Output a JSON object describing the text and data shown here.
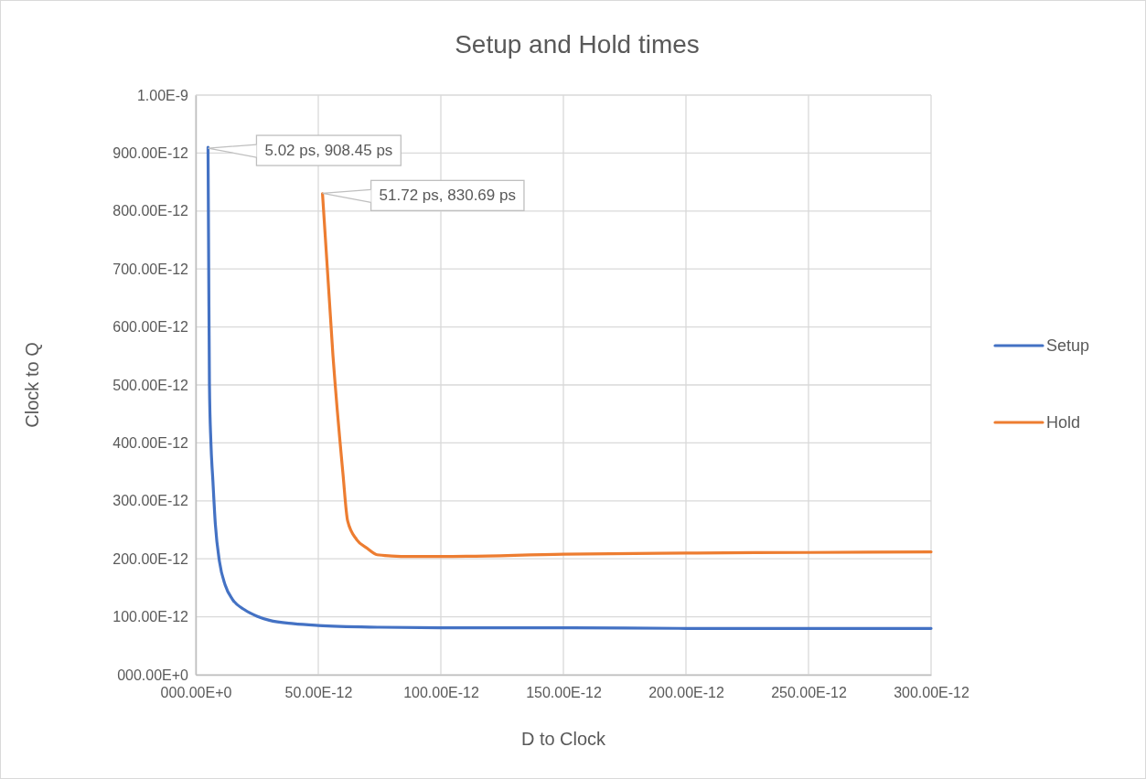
{
  "chart_data": {
    "type": "line",
    "title": "Setup and Hold times",
    "xlabel": "D to Clock",
    "ylabel": "Clock to Q",
    "xlim": [
      0,
      3e-10
    ],
    "ylim": [
      0,
      1e-09
    ],
    "xticks": [
      {
        "value": 0,
        "label": "000.00E+0"
      },
      {
        "value": 5e-11,
        "label": "50.00E-12"
      },
      {
        "value": 1e-10,
        "label": "100.00E-12"
      },
      {
        "value": 1.5e-10,
        "label": "150.00E-12"
      },
      {
        "value": 2e-10,
        "label": "200.00E-12"
      },
      {
        "value": 2.5e-10,
        "label": "250.00E-12"
      },
      {
        "value": 3e-10,
        "label": "300.00E-12"
      }
    ],
    "yticks": [
      {
        "value": 0,
        "label": "000.00E+0"
      },
      {
        "value": 1e-10,
        "label": "100.00E-12"
      },
      {
        "value": 2e-10,
        "label": "200.00E-12"
      },
      {
        "value": 3e-10,
        "label": "300.00E-12"
      },
      {
        "value": 4e-10,
        "label": "400.00E-12"
      },
      {
        "value": 5e-10,
        "label": "500.00E-12"
      },
      {
        "value": 6e-10,
        "label": "600.00E-12"
      },
      {
        "value": 7e-10,
        "label": "700.00E-12"
      },
      {
        "value": 8e-10,
        "label": "800.00E-12"
      },
      {
        "value": 9e-10,
        "label": "900.00E-12"
      },
      {
        "value": 1e-09,
        "label": "1.00E-9"
      }
    ],
    "grid": true,
    "legend": "right",
    "marker": "none",
    "line_style": "solid",
    "series": [
      {
        "name": "Setup",
        "color": "#4472c4",
        "x": [
          5.02e-12,
          5.3e-12,
          5.6e-12,
          6.2e-12,
          7e-12,
          8e-12,
          9.7e-12,
          1.2e-11,
          1.5e-11,
          2e-11,
          2.5e-11,
          3e-11,
          4e-11,
          5e-11,
          7.5e-11,
          1e-10,
          1.5e-10,
          2e-10,
          3e-10
        ],
        "values": [
          9.1e-10,
          7e-10,
          5e-10,
          4e-10,
          3.35e-10,
          2.6e-10,
          1.95e-10,
          1.55e-10,
          1.3e-10,
          1.12e-10,
          1.01e-10,
          9.4e-11,
          8.8e-11,
          8.5e-11,
          8.2e-11,
          8.1e-11,
          8.1e-11,
          8e-11,
          8e-11
        ]
      },
      {
        "name": "Hold",
        "color": "#ed7d31",
        "x": [
          5.172e-11,
          5.6e-11,
          6e-11,
          6.2e-11,
          6.57e-11,
          7e-11,
          7.4e-11,
          8e-11,
          8.7e-11,
          1e-10,
          1.5e-10,
          2e-10,
          2.5e-10,
          3e-10
        ],
        "values": [
          8.3e-10,
          5.5e-10,
          3.5e-10,
          2.65e-10,
          2.33e-10,
          2.18e-10,
          2.07e-10,
          2.05e-10,
          2.04e-10,
          2.04e-10,
          2.08e-10,
          2.1e-10,
          2.11e-10,
          2.12e-10
        ]
      }
    ],
    "annotations": [
      {
        "text": "5.02 ps, 908.45 ps",
        "x": 5.02e-12,
        "y": 9.0845e-10
      },
      {
        "text": "51.72 ps, 830.69 ps",
        "x": 5.172e-11,
        "y": 8.3069e-10
      }
    ]
  }
}
